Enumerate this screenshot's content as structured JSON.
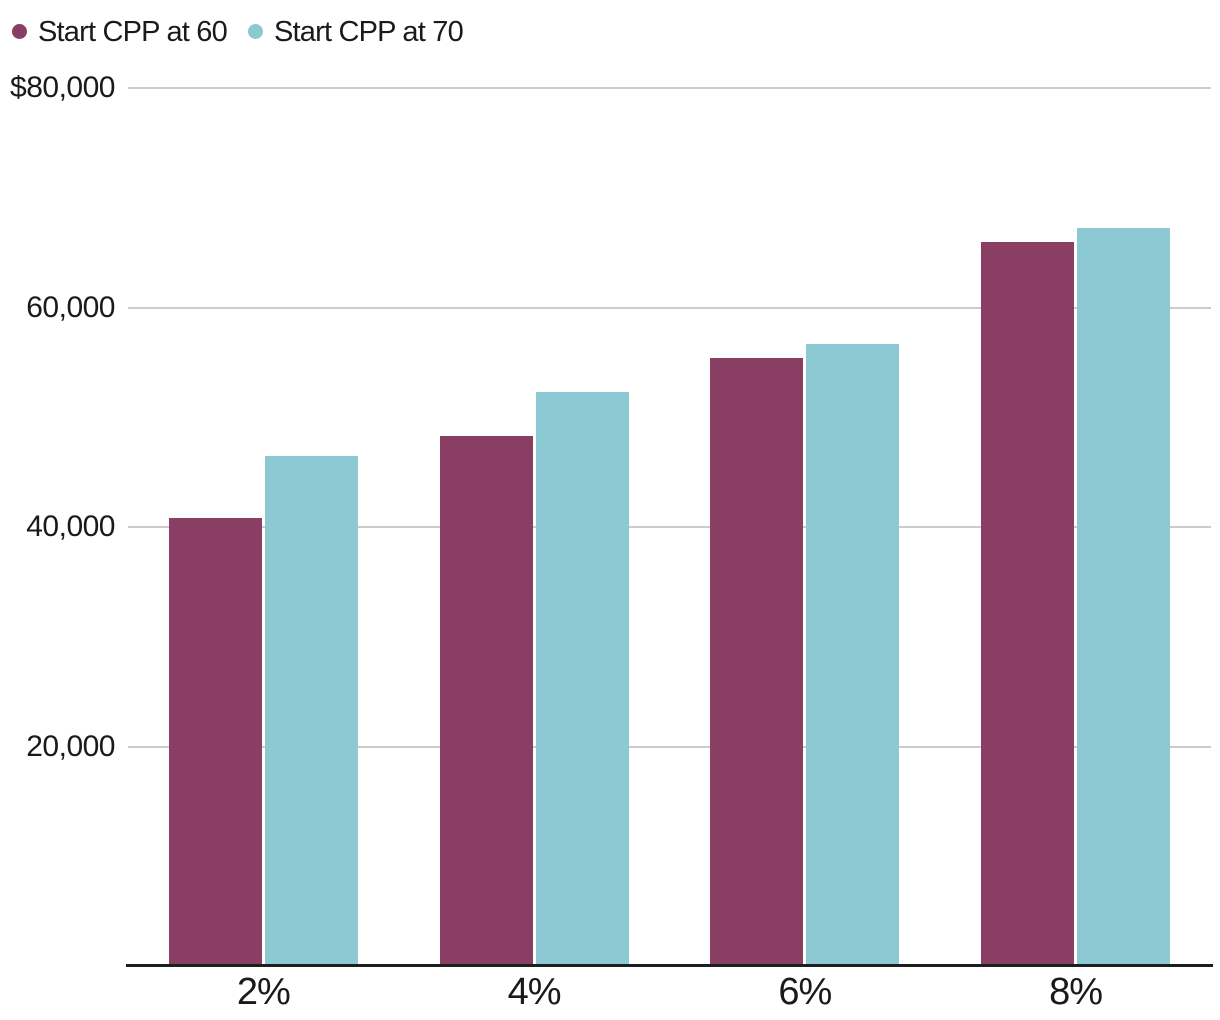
{
  "chart_data": {
    "type": "bar",
    "categories": [
      "2%",
      "4%",
      "6%",
      "8%"
    ],
    "series": [
      {
        "name": "Start CPP at 60",
        "color": "#8B3E63",
        "values": [
          40800,
          48300,
          55400,
          66000
        ]
      },
      {
        "name": "Start CPP at 70",
        "color": "#8DC9D3",
        "values": [
          46500,
          52300,
          56700,
          67200
        ]
      }
    ],
    "title": "",
    "xlabel": "",
    "ylabel": "",
    "ylim": [
      0,
      80000
    ],
    "yticks": [
      {
        "value": 80000,
        "label": "$80,000"
      },
      {
        "value": 60000,
        "label": "60,000"
      },
      {
        "value": 40000,
        "label": "40,000"
      },
      {
        "value": 20000,
        "label": "20,000"
      }
    ],
    "grid": true,
    "legend_position": "top-left"
  },
  "colors": {
    "series_60": "#8B3E63",
    "series_70": "#8DC9D3",
    "gridline": "#cccccc",
    "axis": "#1e1e1e",
    "text": "#1a1a1a",
    "background": "#ffffff"
  }
}
